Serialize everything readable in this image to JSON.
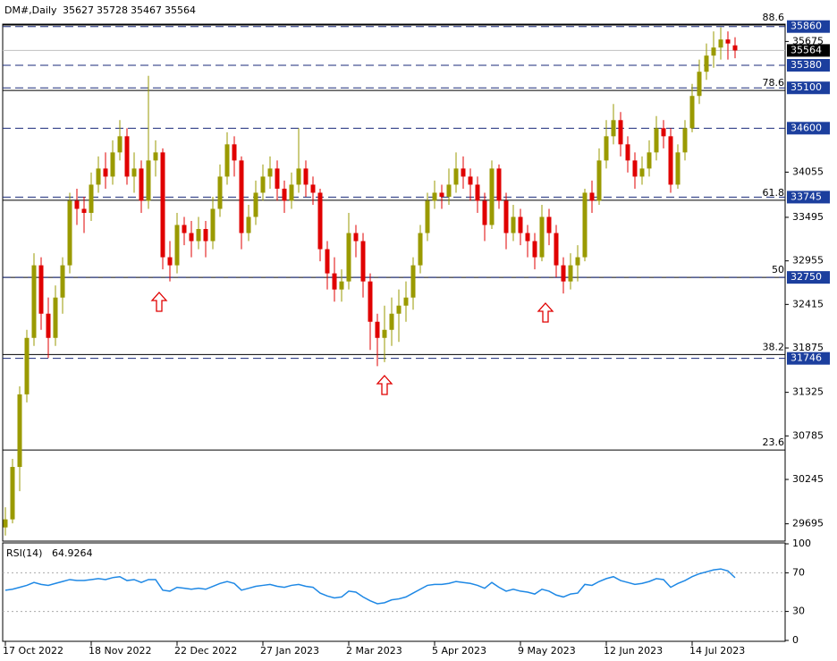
{
  "header": {
    "symbol": "DM#,Daily"
  },
  "chart_data": [
    {
      "type": "candlestick",
      "categories": [
        "17 Oct 2022",
        null,
        null,
        null,
        null,
        null,
        null,
        null,
        null,
        null,
        null,
        null,
        "18 Nov 2022",
        null,
        null,
        null,
        null,
        null,
        null,
        null,
        null,
        null,
        null,
        null,
        "22 Dec 2022",
        null,
        null,
        null,
        null,
        null,
        null,
        null,
        null,
        null,
        null,
        null,
        "27 Jan 2023",
        null,
        null,
        null,
        null,
        null,
        null,
        null,
        null,
        null,
        null,
        null,
        "2 Mar 2023",
        null,
        null,
        null,
        null,
        null,
        null,
        null,
        null,
        null,
        null,
        null,
        "5 Apr 2023",
        null,
        null,
        null,
        null,
        null,
        null,
        null,
        null,
        null,
        null,
        null,
        "9 May 2023",
        null,
        null,
        null,
        null,
        null,
        null,
        null,
        null,
        null,
        null,
        null,
        "12 Jun 2023",
        null,
        null,
        null,
        null,
        null,
        null,
        null,
        null,
        null,
        null,
        null,
        "14 Jul 2023",
        null,
        null,
        null,
        null,
        null,
        null
      ],
      "ohlc": [
        [
          29650,
          29900,
          29550,
          29750
        ],
        [
          29750,
          30500,
          29700,
          30400
        ],
        [
          30400,
          31400,
          30100,
          31300
        ],
        [
          31300,
          32100,
          31200,
          32000
        ],
        [
          32000,
          33050,
          31900,
          32900
        ],
        [
          32900,
          33000,
          32100,
          32300
        ],
        [
          32300,
          32500,
          31750,
          32000
        ],
        [
          32000,
          32650,
          31900,
          32500
        ],
        [
          32500,
          33000,
          32300,
          32900
        ],
        [
          32900,
          33800,
          32800,
          33700
        ],
        [
          33700,
          33850,
          33400,
          33600
        ],
        [
          33600,
          33750,
          33300,
          33550
        ],
        [
          33550,
          34050,
          33450,
          33900
        ],
        [
          33900,
          34250,
          33800,
          34100
        ],
        [
          34100,
          34300,
          33850,
          34000
        ],
        [
          34000,
          34450,
          33900,
          34300
        ],
        [
          34300,
          34700,
          34200,
          34500
        ],
        [
          34500,
          34600,
          33900,
          34000
        ],
        [
          34000,
          34300,
          33800,
          34100
        ],
        [
          34100,
          34200,
          33550,
          33700
        ],
        [
          33700,
          35250,
          33600,
          34200
        ],
        [
          34200,
          34450,
          34000,
          34300
        ],
        [
          34300,
          34350,
          32850,
          33000
        ],
        [
          33000,
          33200,
          32700,
          32900
        ],
        [
          32900,
          33550,
          32800,
          33400
        ],
        [
          33400,
          33500,
          33150,
          33300
        ],
        [
          33300,
          33450,
          33000,
          33200
        ],
        [
          33200,
          33500,
          33100,
          33350
        ],
        [
          33350,
          33450,
          33000,
          33200
        ],
        [
          33200,
          33750,
          33100,
          33600
        ],
        [
          33600,
          34150,
          33500,
          34000
        ],
        [
          34000,
          34550,
          33900,
          34400
        ],
        [
          34400,
          34500,
          34000,
          34200
        ],
        [
          34200,
          34250,
          33100,
          33300
        ],
        [
          33300,
          33650,
          33200,
          33500
        ],
        [
          33500,
          33950,
          33400,
          33800
        ],
        [
          33800,
          34150,
          33700,
          34000
        ],
        [
          34000,
          34250,
          33850,
          34100
        ],
        [
          34100,
          34200,
          33700,
          33850
        ],
        [
          33850,
          33950,
          33550,
          33700
        ],
        [
          33700,
          34050,
          33600,
          33900
        ],
        [
          33900,
          34600,
          33800,
          34100
        ],
        [
          34100,
          34200,
          33750,
          33900
        ],
        [
          33900,
          34000,
          33650,
          33800
        ],
        [
          33800,
          33850,
          32950,
          33100
        ],
        [
          33100,
          33200,
          32600,
          32800
        ],
        [
          32800,
          33000,
          32450,
          32600
        ],
        [
          32600,
          32850,
          32450,
          32700
        ],
        [
          32700,
          33550,
          32600,
          33300
        ],
        [
          33300,
          33400,
          33000,
          33200
        ],
        [
          33200,
          33300,
          32500,
          32700
        ],
        [
          32700,
          32800,
          31850,
          32200
        ],
        [
          32200,
          32300,
          31650,
          32000
        ],
        [
          32000,
          32400,
          31700,
          32100
        ],
        [
          32100,
          32500,
          31900,
          32300
        ],
        [
          32300,
          32600,
          31950,
          32400
        ],
        [
          32400,
          32700,
          32200,
          32500
        ],
        [
          32500,
          33000,
          32350,
          32900
        ],
        [
          32900,
          33400,
          32800,
          33300
        ],
        [
          33300,
          33800,
          33200,
          33700
        ],
        [
          33700,
          33950,
          33600,
          33800
        ],
        [
          33800,
          33900,
          33600,
          33750
        ],
        [
          33750,
          34100,
          33650,
          33900
        ],
        [
          33900,
          34300,
          33800,
          34100
        ],
        [
          34100,
          34250,
          33850,
          34000
        ],
        [
          34000,
          34100,
          33700,
          33900
        ],
        [
          33900,
          34000,
          33550,
          33700
        ],
        [
          33700,
          33800,
          33200,
          33400
        ],
        [
          33400,
          34200,
          33350,
          34100
        ],
        [
          34100,
          34150,
          33600,
          33700
        ],
        [
          33700,
          33800,
          33100,
          33300
        ],
        [
          33300,
          33650,
          33200,
          33500
        ],
        [
          33500,
          33600,
          33150,
          33300
        ],
        [
          33300,
          33400,
          33000,
          33200
        ],
        [
          33200,
          33300,
          32850,
          33000
        ],
        [
          33000,
          33650,
          32950,
          33500
        ],
        [
          33500,
          33600,
          33150,
          33300
        ],
        [
          33300,
          33400,
          32750,
          32900
        ],
        [
          32900,
          33000,
          32550,
          32700
        ],
        [
          32700,
          33050,
          32600,
          32900
        ],
        [
          32900,
          33150,
          32700,
          33000
        ],
        [
          33000,
          33850,
          32950,
          33800
        ],
        [
          33800,
          33950,
          33550,
          33700
        ],
        [
          33700,
          34350,
          33650,
          34200
        ],
        [
          34200,
          34700,
          34100,
          34500
        ],
        [
          34500,
          34900,
          34400,
          34700
        ],
        [
          34700,
          34800,
          34250,
          34400
        ],
        [
          34400,
          34500,
          34050,
          34200
        ],
        [
          34200,
          34300,
          33850,
          34000
        ],
        [
          34000,
          34250,
          33900,
          34100
        ],
        [
          34100,
          34450,
          34000,
          34300
        ],
        [
          34300,
          34750,
          34200,
          34600
        ],
        [
          34600,
          34700,
          34350,
          34500
        ],
        [
          34500,
          34600,
          33800,
          33900
        ],
        [
          33900,
          34400,
          33850,
          34300
        ],
        [
          34300,
          34700,
          34200,
          34600
        ],
        [
          34600,
          35150,
          34550,
          35000
        ],
        [
          35000,
          35450,
          34900,
          35300
        ],
        [
          35300,
          35650,
          35200,
          35500
        ],
        [
          35500,
          35800,
          35350,
          35600
        ],
        [
          35600,
          35850,
          35450,
          35700
        ],
        [
          35700,
          35800,
          35450,
          35650
        ],
        [
          35627,
          35728,
          35467,
          35564
        ]
      ],
      "ylim": [
        29480,
        35890
      ],
      "yticks": [
        35675,
        34055,
        33495,
        32955,
        32415,
        31875,
        31325,
        30785,
        30245,
        29695
      ],
      "colors": {
        "up": "#9a9a00",
        "down": "#e00000",
        "level": "#1a2a7a",
        "box": "#1c3f9e"
      },
      "levels": [
        {
          "price": 35860
        },
        {
          "price": 35380
        },
        {
          "price": 35100
        },
        {
          "price": 34600
        },
        {
          "price": 33745
        },
        {
          "price": 32750
        },
        {
          "price": 31746
        }
      ],
      "fib_levels": [
        {
          "ratio": 88.6,
          "price": 35879
        },
        {
          "ratio": 78.6,
          "price": 35068
        },
        {
          "ratio": 61.8,
          "price": 33707
        },
        {
          "ratio": 50.0,
          "price": 32750
        },
        {
          "ratio": 38.2,
          "price": 31793
        },
        {
          "ratio": 23.6,
          "price": 30610
        }
      ],
      "last_price": 35564
    },
    {
      "type": "line",
      "name": "RSI(14)",
      "color": "#1e88e5",
      "values": [
        52,
        53,
        55,
        57,
        60,
        58,
        57,
        59,
        61,
        63,
        62,
        62,
        63,
        64,
        63,
        65,
        66,
        62,
        63,
        60,
        63,
        63,
        52,
        51,
        55,
        54,
        53,
        54,
        53,
        56,
        59,
        61,
        59,
        52,
        54,
        56,
        57,
        58,
        56,
        55,
        57,
        58,
        56,
        55,
        49,
        46,
        44,
        45,
        51,
        50,
        45,
        41,
        38,
        39,
        42,
        43,
        45,
        49,
        53,
        57,
        58,
        58,
        59,
        61,
        60,
        59,
        57,
        54,
        60,
        55,
        51,
        53,
        51,
        50,
        48,
        53,
        51,
        47,
        45,
        48,
        49,
        58,
        57,
        61,
        64,
        66,
        62,
        60,
        58,
        59,
        61,
        64,
        63,
        55,
        59,
        62,
        66,
        69,
        71,
        73,
        74,
        72,
        64.9264
      ],
      "ylim": [
        0,
        100
      ],
      "yticks": [
        100,
        70,
        30,
        0
      ],
      "dashed_levels": [
        70,
        30
      ]
    }
  ]
}
